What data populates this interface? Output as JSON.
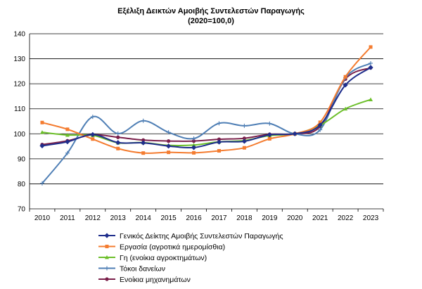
{
  "chart_data": {
    "type": "line",
    "title": "Εξέλιξη Δεικτών Αμοιβής Συντελεστών Παραγωγής",
    "subtitle": "(2020=100,0)",
    "xlabel": "",
    "ylabel": "",
    "x": [
      "2010",
      "2011",
      "2012",
      "2013",
      "2014",
      "2015",
      "2016",
      "2017",
      "2018",
      "2019",
      "2020",
      "2021",
      "2022",
      "2023"
    ],
    "ylim": [
      70,
      140
    ],
    "yticks": [
      70,
      80,
      90,
      100,
      110,
      120,
      130,
      140
    ],
    "grid": true,
    "legend_position": "bottom",
    "series": [
      {
        "name": "Γενικός Δείκτης  Αμοιβής Συντελεστών Παραγωγής",
        "color": "#1f2e8c",
        "marker": "diamond",
        "values": [
          95.2,
          96.8,
          99.7,
          96.5,
          96.4,
          95.1,
          94.5,
          96.7,
          97.0,
          99.6,
          100.0,
          103.5,
          119.5,
          126.5
        ]
      },
      {
        "name": "Εργασία (αγροτικά ημερομίσθια)",
        "color": "#f47c30",
        "marker": "square",
        "values": [
          104.5,
          101.8,
          97.9,
          94.1,
          92.3,
          92.6,
          92.4,
          93.2,
          94.4,
          98.0,
          100.0,
          104.6,
          122.8,
          134.7
        ]
      },
      {
        "name": "Γη (ενοίκια αγροκτημάτων)",
        "color": "#6cbf2a",
        "marker": "triangle",
        "values": [
          100.6,
          99.5,
          99.4,
          96.4,
          96.5,
          95.4,
          95.5,
          96.8,
          97.3,
          99.3,
          100.0,
          103.4,
          110.0,
          113.7
        ]
      },
      {
        "name": "Τόκοι δανείων",
        "color": "#4f7fb5",
        "marker": "plus",
        "values": [
          80.2,
          92.3,
          106.8,
          100.1,
          105.2,
          100.6,
          98.1,
          104.2,
          103.2,
          104.1,
          100.0,
          101.6,
          122.4,
          128.2
        ]
      },
      {
        "name": "Ενοίκια μηχανημάτων",
        "color": "#7a1f4a",
        "marker": "circle",
        "values": [
          95.7,
          97.2,
          99.6,
          98.6,
          97.5,
          97.1,
          97.1,
          97.8,
          98.2,
          99.8,
          100.0,
          102.9,
          121.9,
          126.4
        ]
      }
    ]
  }
}
